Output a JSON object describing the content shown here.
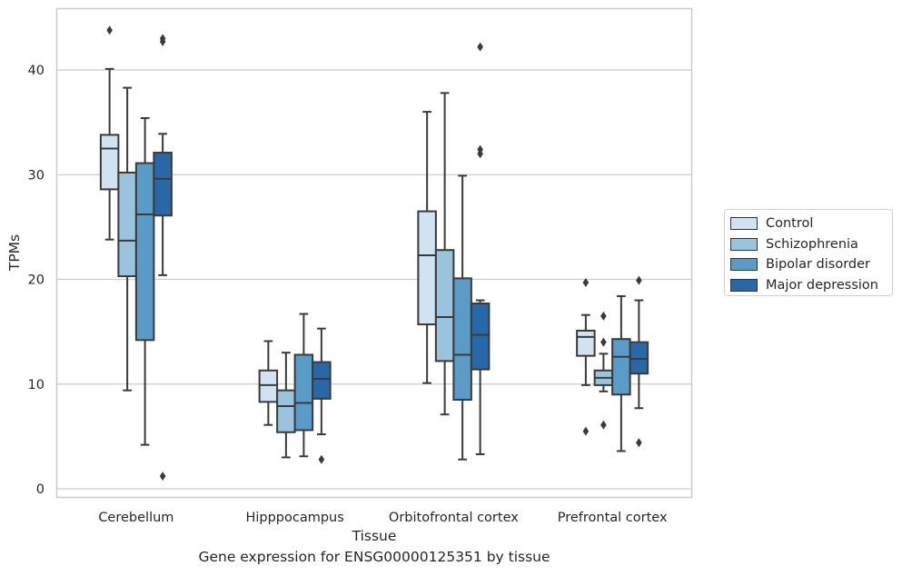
{
  "chart_data": {
    "type": "boxplot",
    "title": "Gene expression for ENSG00000125351 by tissue",
    "xlabel": "Tissue",
    "ylabel": "TPMs",
    "ylim": [
      -0.8,
      46.2
    ],
    "yticks": [
      0,
      10,
      20,
      30,
      40
    ],
    "grid": "horizontal",
    "legend_position": "right, outside",
    "categories": [
      "Cerebellum",
      "Hipppocampus",
      "Orbitofrontal cortex",
      "Prefrontal cortex"
    ],
    "series": [
      {
        "name": "Control",
        "color": "#d1e2f2",
        "boxes": [
          {
            "min": 23.8,
            "q1": 28.6,
            "median": 32.5,
            "q3": 33.8,
            "max": 40.1,
            "outliers": [
              43.8
            ]
          },
          {
            "min": 6.1,
            "q1": 8.3,
            "median": 9.9,
            "q3": 11.3,
            "max": 14.1,
            "outliers": []
          },
          {
            "min": 10.1,
            "q1": 15.7,
            "median": 22.3,
            "q3": 26.5,
            "max": 36.0,
            "outliers": []
          },
          {
            "min": 9.9,
            "q1": 12.7,
            "median": 14.5,
            "q3": 15.1,
            "max": 16.6,
            "outliers": [
              5.5,
              19.7
            ]
          }
        ]
      },
      {
        "name": "Schizophrenia",
        "color": "#9ac3dd",
        "boxes": [
          {
            "min": 9.4,
            "q1": 20.3,
            "median": 23.7,
            "q3": 30.2,
            "max": 38.3,
            "outliers": []
          },
          {
            "min": 3.0,
            "q1": 5.4,
            "median": 7.9,
            "q3": 9.4,
            "max": 13.0,
            "outliers": []
          },
          {
            "min": 7.1,
            "q1": 12.2,
            "median": 16.4,
            "q3": 22.8,
            "max": 37.8,
            "outliers": []
          },
          {
            "min": 9.3,
            "q1": 9.9,
            "median": 10.6,
            "q3": 11.3,
            "max": 12.9,
            "outliers": [
              6.1,
              14.0,
              16.5
            ]
          }
        ]
      },
      {
        "name": "Bipolar disorder",
        "color": "#5b9bc8",
        "boxes": [
          {
            "min": 4.2,
            "q1": 14.2,
            "median": 26.2,
            "q3": 31.1,
            "max": 35.4,
            "outliers": []
          },
          {
            "min": 3.1,
            "q1": 5.6,
            "median": 8.2,
            "q3": 12.8,
            "max": 16.7,
            "outliers": []
          },
          {
            "min": 2.8,
            "q1": 8.5,
            "median": 12.8,
            "q3": 20.1,
            "max": 29.9,
            "outliers": []
          },
          {
            "min": 3.6,
            "q1": 9.0,
            "median": 12.6,
            "q3": 14.3,
            "max": 18.4,
            "outliers": []
          }
        ]
      },
      {
        "name": "Major depression",
        "color": "#2868a8",
        "boxes": [
          {
            "min": 20.4,
            "q1": 26.1,
            "median": 29.6,
            "q3": 32.1,
            "max": 33.9,
            "outliers": [
              1.2,
              42.7,
              43.0
            ]
          },
          {
            "min": 5.2,
            "q1": 8.6,
            "median": 10.5,
            "q3": 12.1,
            "max": 15.3,
            "outliers": [
              2.8
            ]
          },
          {
            "min": 3.3,
            "q1": 11.4,
            "median": 14.7,
            "q3": 17.7,
            "max": 18.0,
            "outliers": [
              32.0,
              32.4,
              42.2
            ]
          },
          {
            "min": 7.7,
            "q1": 11.0,
            "median": 12.4,
            "q3": 14.0,
            "max": 18.0,
            "outliers": [
              4.4,
              19.9
            ]
          }
        ]
      }
    ]
  }
}
